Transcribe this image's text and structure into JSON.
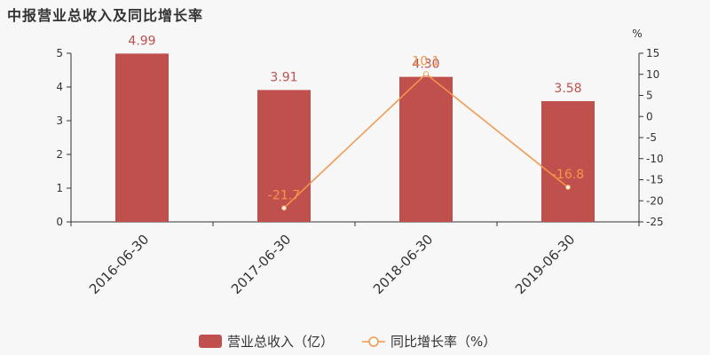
{
  "chart_data": {
    "type": "bar",
    "title": "中报营业总收入及同比增长率",
    "categories": [
      "2016-06-30",
      "2017-06-30",
      "2018-06-30",
      "2019-06-30"
    ],
    "series": [
      {
        "name": "营业总收入（亿）",
        "type": "bar",
        "axis": "left",
        "values": [
          4.99,
          3.91,
          4.3,
          3.58
        ],
        "labels": [
          "4.99",
          "3.91",
          "4.30",
          "3.58"
        ],
        "color": "#c0504d"
      },
      {
        "name": "同比增长率（%）",
        "type": "line",
        "axis": "right",
        "values": [
          null,
          -21.7,
          10.1,
          -16.8
        ],
        "labels": [
          "",
          "-21.7",
          "10.1",
          "-16.8"
        ],
        "color": "#f79646"
      }
    ],
    "y_left": {
      "ylim": [
        0,
        5
      ],
      "ticks": [
        "0",
        "1",
        "2",
        "3",
        "4",
        "5"
      ]
    },
    "y_right": {
      "ylim": [
        -25,
        15
      ],
      "unit": "%",
      "ticks": [
        "15",
        "10",
        "5",
        "0",
        "-5",
        "-10",
        "-15",
        "-20",
        "-25"
      ]
    },
    "legend_position": "bottom-center"
  }
}
